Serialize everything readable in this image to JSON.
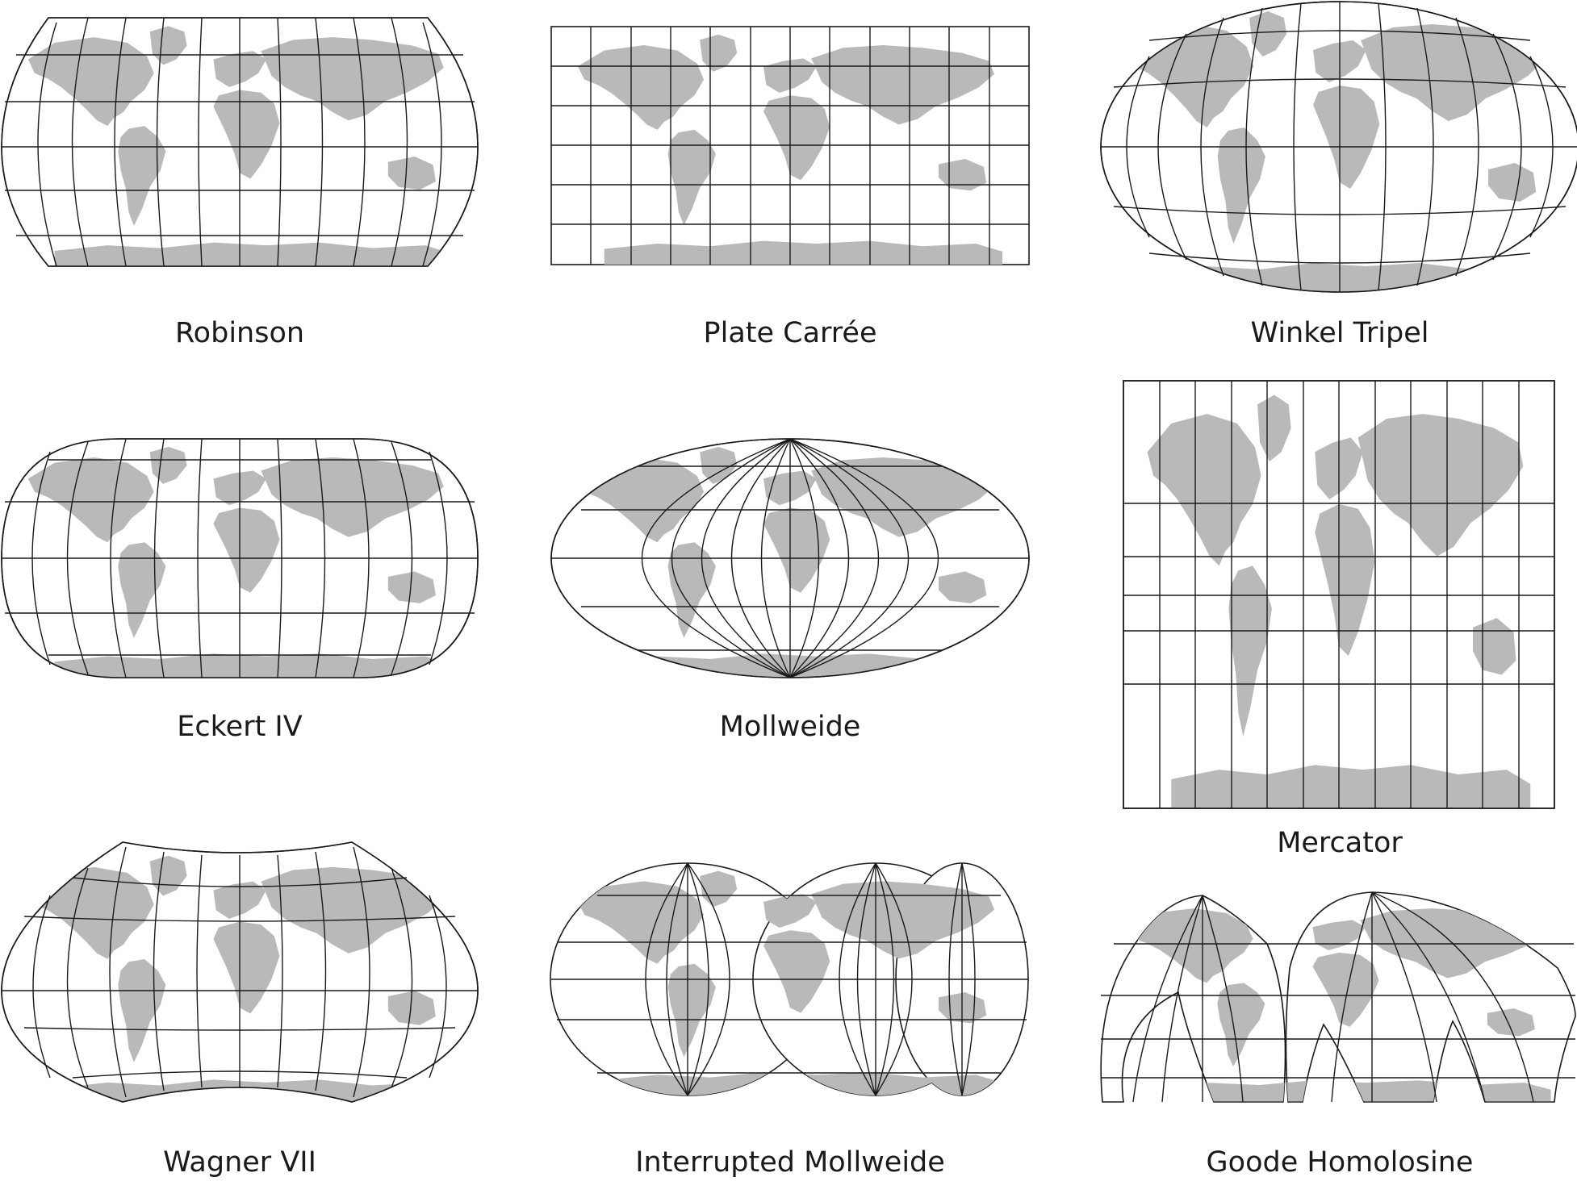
{
  "figure": {
    "land_color": "#b9b9b9",
    "line_color": "#1a1a1a",
    "background": "#ffffff",
    "projections": [
      {
        "id": "robinson",
        "caption": "Robinson"
      },
      {
        "id": "plate-carree",
        "caption": "Plate Carrée"
      },
      {
        "id": "winkel-tripel",
        "caption": "Winkel Tripel"
      },
      {
        "id": "eckert-iv",
        "caption": "Eckert IV"
      },
      {
        "id": "mollweide",
        "caption": "Mollweide"
      },
      {
        "id": "mercator",
        "caption": "Mercator"
      },
      {
        "id": "wagner-vii",
        "caption": "Wagner VII"
      },
      {
        "id": "interrupted-mollweide",
        "caption": "Interrupted Mollweide"
      },
      {
        "id": "goode-homolosine",
        "caption": "Goode Homolosine"
      }
    ]
  }
}
